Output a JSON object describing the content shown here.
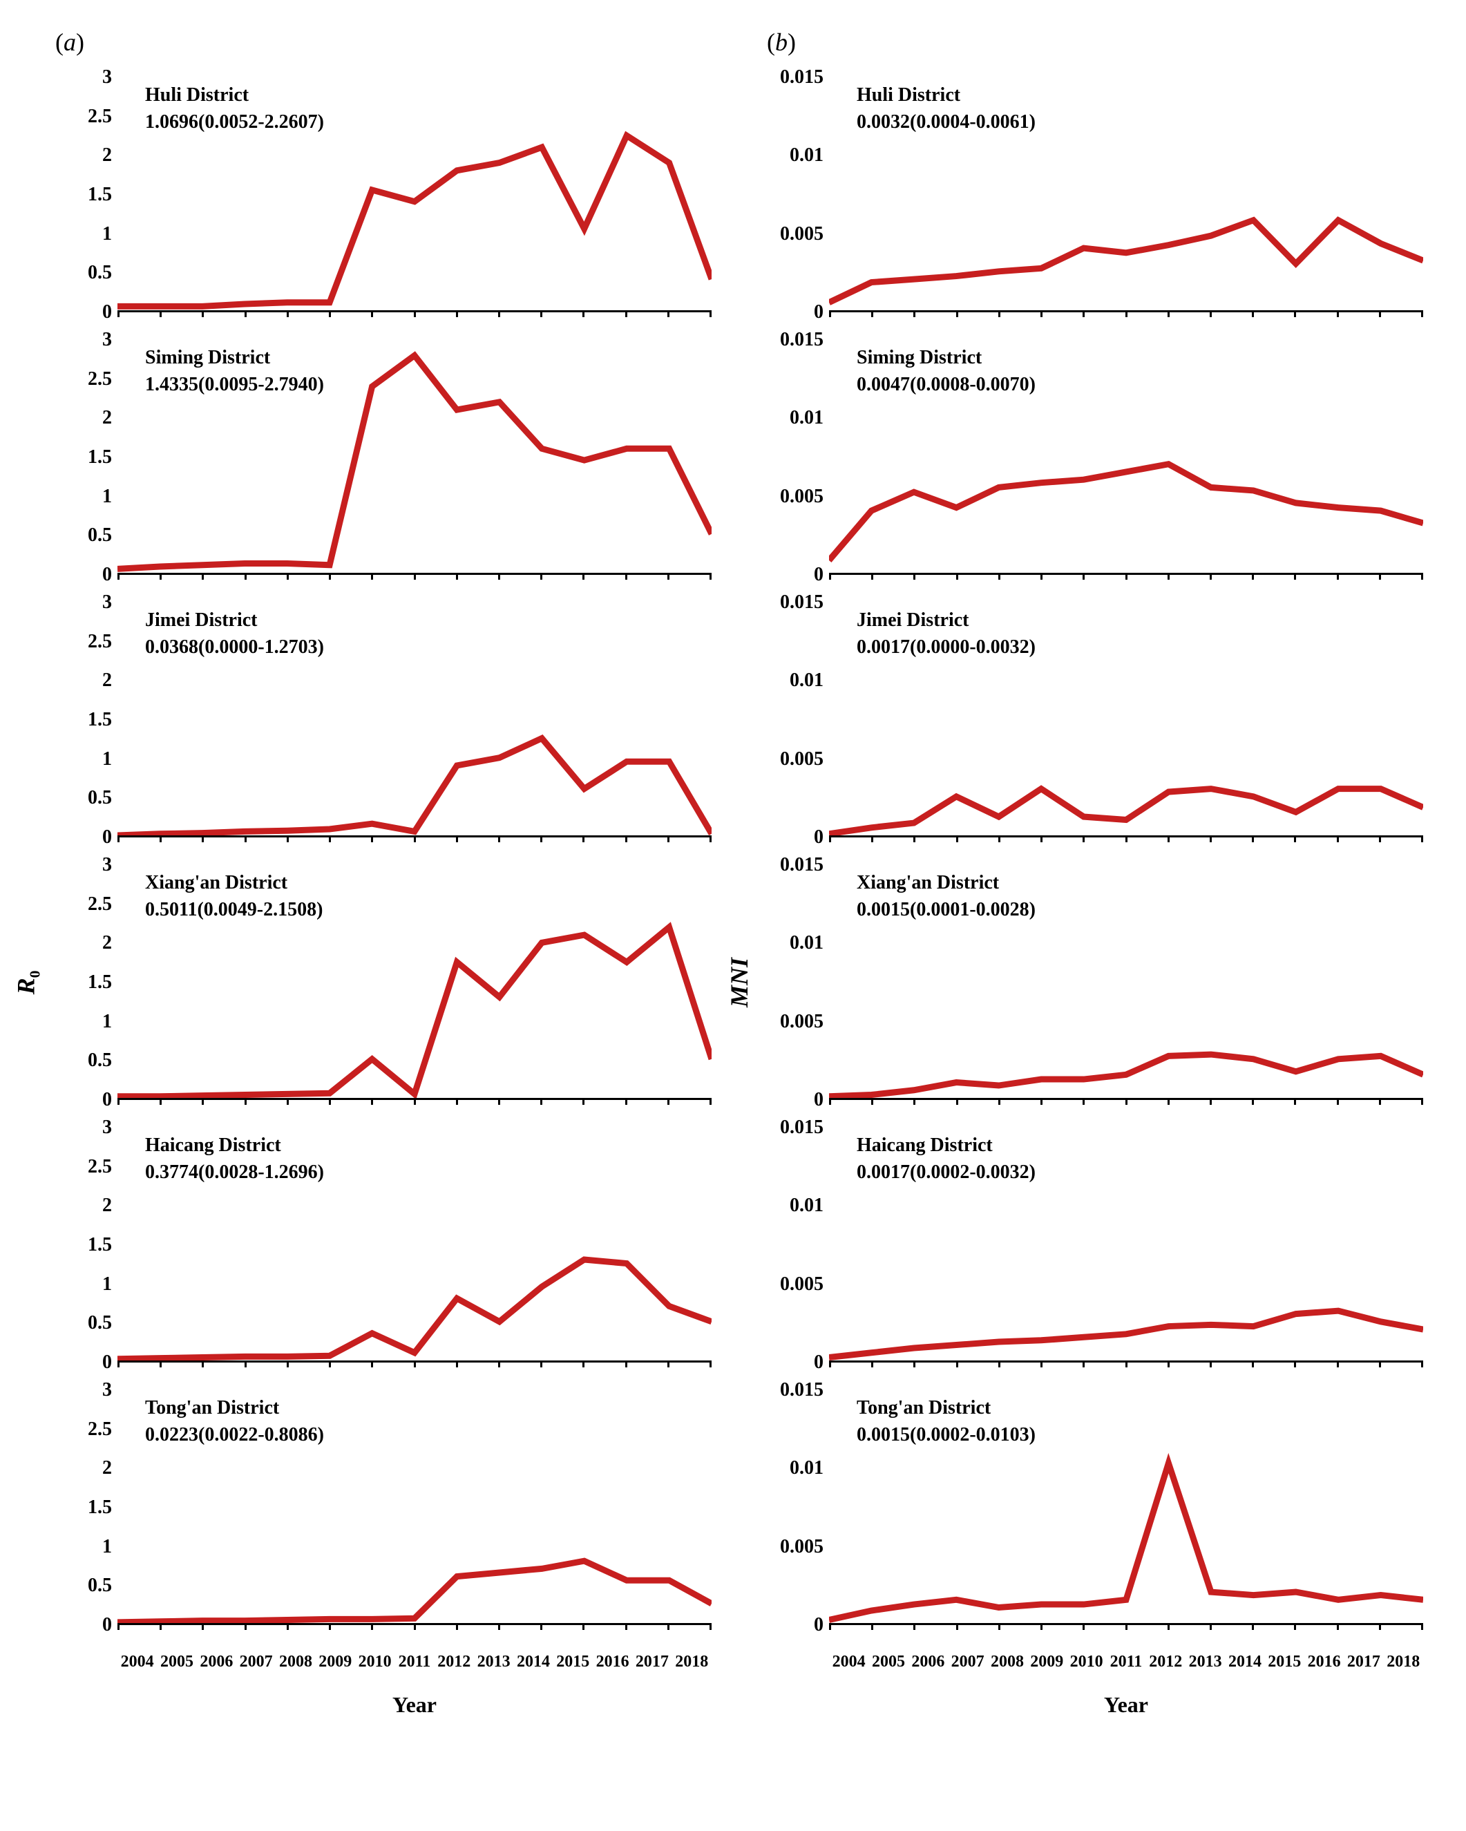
{
  "panels": [
    {
      "label": "a",
      "y_axis_label": "R",
      "y_axis_sub": "0"
    },
    {
      "label": "b",
      "y_axis_label": "MNI",
      "y_axis_sub": ""
    }
  ],
  "x_axis_label": "Year",
  "years": [
    "2004",
    "2005",
    "2006",
    "2007",
    "2008",
    "2009",
    "2010",
    "2011",
    "2012",
    "2013",
    "2014",
    "2015",
    "2016",
    "2017",
    "2018"
  ],
  "line_color": "#c71f1f",
  "line_width": 3,
  "background_color": "#ffffff",
  "axis_color": "#000000",
  "title_fontsize": 28,
  "tick_fontsize": 28,
  "columns": [
    {
      "ylim": [
        0,
        3
      ],
      "yticks": [
        "3",
        "2.5",
        "2",
        "1.5",
        "1",
        "0.5",
        "0"
      ],
      "charts": [
        {
          "title": "Huli District",
          "subtitle": "1.0696(0.0052-2.2607)",
          "values": [
            0.05,
            0.05,
            0.05,
            0.08,
            0.1,
            0.1,
            1.55,
            1.4,
            1.8,
            1.9,
            2.1,
            1.05,
            2.25,
            1.9,
            0.4
          ]
        },
        {
          "title": "Siming District",
          "subtitle": "1.4335(0.0095-2.7940)",
          "values": [
            0.05,
            0.08,
            0.1,
            0.12,
            0.12,
            0.1,
            2.4,
            2.8,
            2.1,
            2.2,
            1.6,
            1.45,
            1.6,
            1.6,
            0.5
          ]
        },
        {
          "title": "Jimei District",
          "subtitle": "0.0368(0.0000-1.2703)",
          "values": [
            0.0,
            0.02,
            0.03,
            0.05,
            0.06,
            0.08,
            0.15,
            0.05,
            0.9,
            1.0,
            1.25,
            0.6,
            0.95,
            0.95,
            0.02
          ]
        },
        {
          "title": "Xiang'an District",
          "subtitle": "0.5011(0.0049-2.1508)",
          "values": [
            0.02,
            0.02,
            0.03,
            0.04,
            0.05,
            0.06,
            0.5,
            0.05,
            1.75,
            1.3,
            2.0,
            2.1,
            1.75,
            2.2,
            0.5
          ]
        },
        {
          "title": "Haicang District",
          "subtitle": "0.3774(0.0028-1.2696)",
          "values": [
            0.02,
            0.03,
            0.04,
            0.05,
            0.05,
            0.06,
            0.35,
            0.1,
            0.8,
            0.5,
            0.95,
            1.3,
            1.25,
            0.7,
            0.5
          ]
        },
        {
          "title": "Tong'an District",
          "subtitle": "0.0223(0.0022-0.8086)",
          "values": [
            0.01,
            0.02,
            0.03,
            0.03,
            0.04,
            0.05,
            0.05,
            0.06,
            0.6,
            0.65,
            0.7,
            0.8,
            0.55,
            0.55,
            0.25
          ]
        }
      ]
    },
    {
      "ylim": [
        0,
        0.015
      ],
      "yticks": [
        "0.015",
        "0.01",
        "0.005",
        "0"
      ],
      "charts": [
        {
          "title": "Huli District",
          "subtitle": "0.0032(0.0004-0.0061)",
          "values": [
            0.0005,
            0.0018,
            0.002,
            0.0022,
            0.0025,
            0.0027,
            0.004,
            0.0037,
            0.0042,
            0.0048,
            0.0058,
            0.003,
            0.0058,
            0.0043,
            0.0032
          ]
        },
        {
          "title": "Siming District",
          "subtitle": "0.0047(0.0008-0.0070)",
          "values": [
            0.0008,
            0.004,
            0.0052,
            0.0042,
            0.0055,
            0.0058,
            0.006,
            0.0065,
            0.007,
            0.0055,
            0.0053,
            0.0045,
            0.0042,
            0.004,
            0.0032
          ]
        },
        {
          "title": "Jimei District",
          "subtitle": "0.0017(0.0000-0.0032)",
          "values": [
            0.0001,
            0.0005,
            0.0008,
            0.0025,
            0.0012,
            0.003,
            0.0012,
            0.001,
            0.0028,
            0.003,
            0.0025,
            0.0015,
            0.003,
            0.003,
            0.0018
          ]
        },
        {
          "title": "Xiang'an District",
          "subtitle": "0.0015(0.0001-0.0028)",
          "values": [
            0.0001,
            0.0002,
            0.0005,
            0.001,
            0.0008,
            0.0012,
            0.0012,
            0.0015,
            0.0027,
            0.0028,
            0.0025,
            0.0017,
            0.0025,
            0.0027,
            0.0015
          ]
        },
        {
          "title": "Haicang District",
          "subtitle": "0.0017(0.0002-0.0032)",
          "values": [
            0.0002,
            0.0005,
            0.0008,
            0.001,
            0.0012,
            0.0013,
            0.0015,
            0.0017,
            0.0022,
            0.0023,
            0.0022,
            0.003,
            0.0032,
            0.0025,
            0.002
          ]
        },
        {
          "title": "Tong'an District",
          "subtitle": "0.0015(0.0002-0.0103)",
          "values": [
            0.0002,
            0.0008,
            0.0012,
            0.0015,
            0.001,
            0.0012,
            0.0012,
            0.0015,
            0.0103,
            0.002,
            0.0018,
            0.002,
            0.0015,
            0.0018,
            0.0015
          ]
        }
      ]
    }
  ]
}
